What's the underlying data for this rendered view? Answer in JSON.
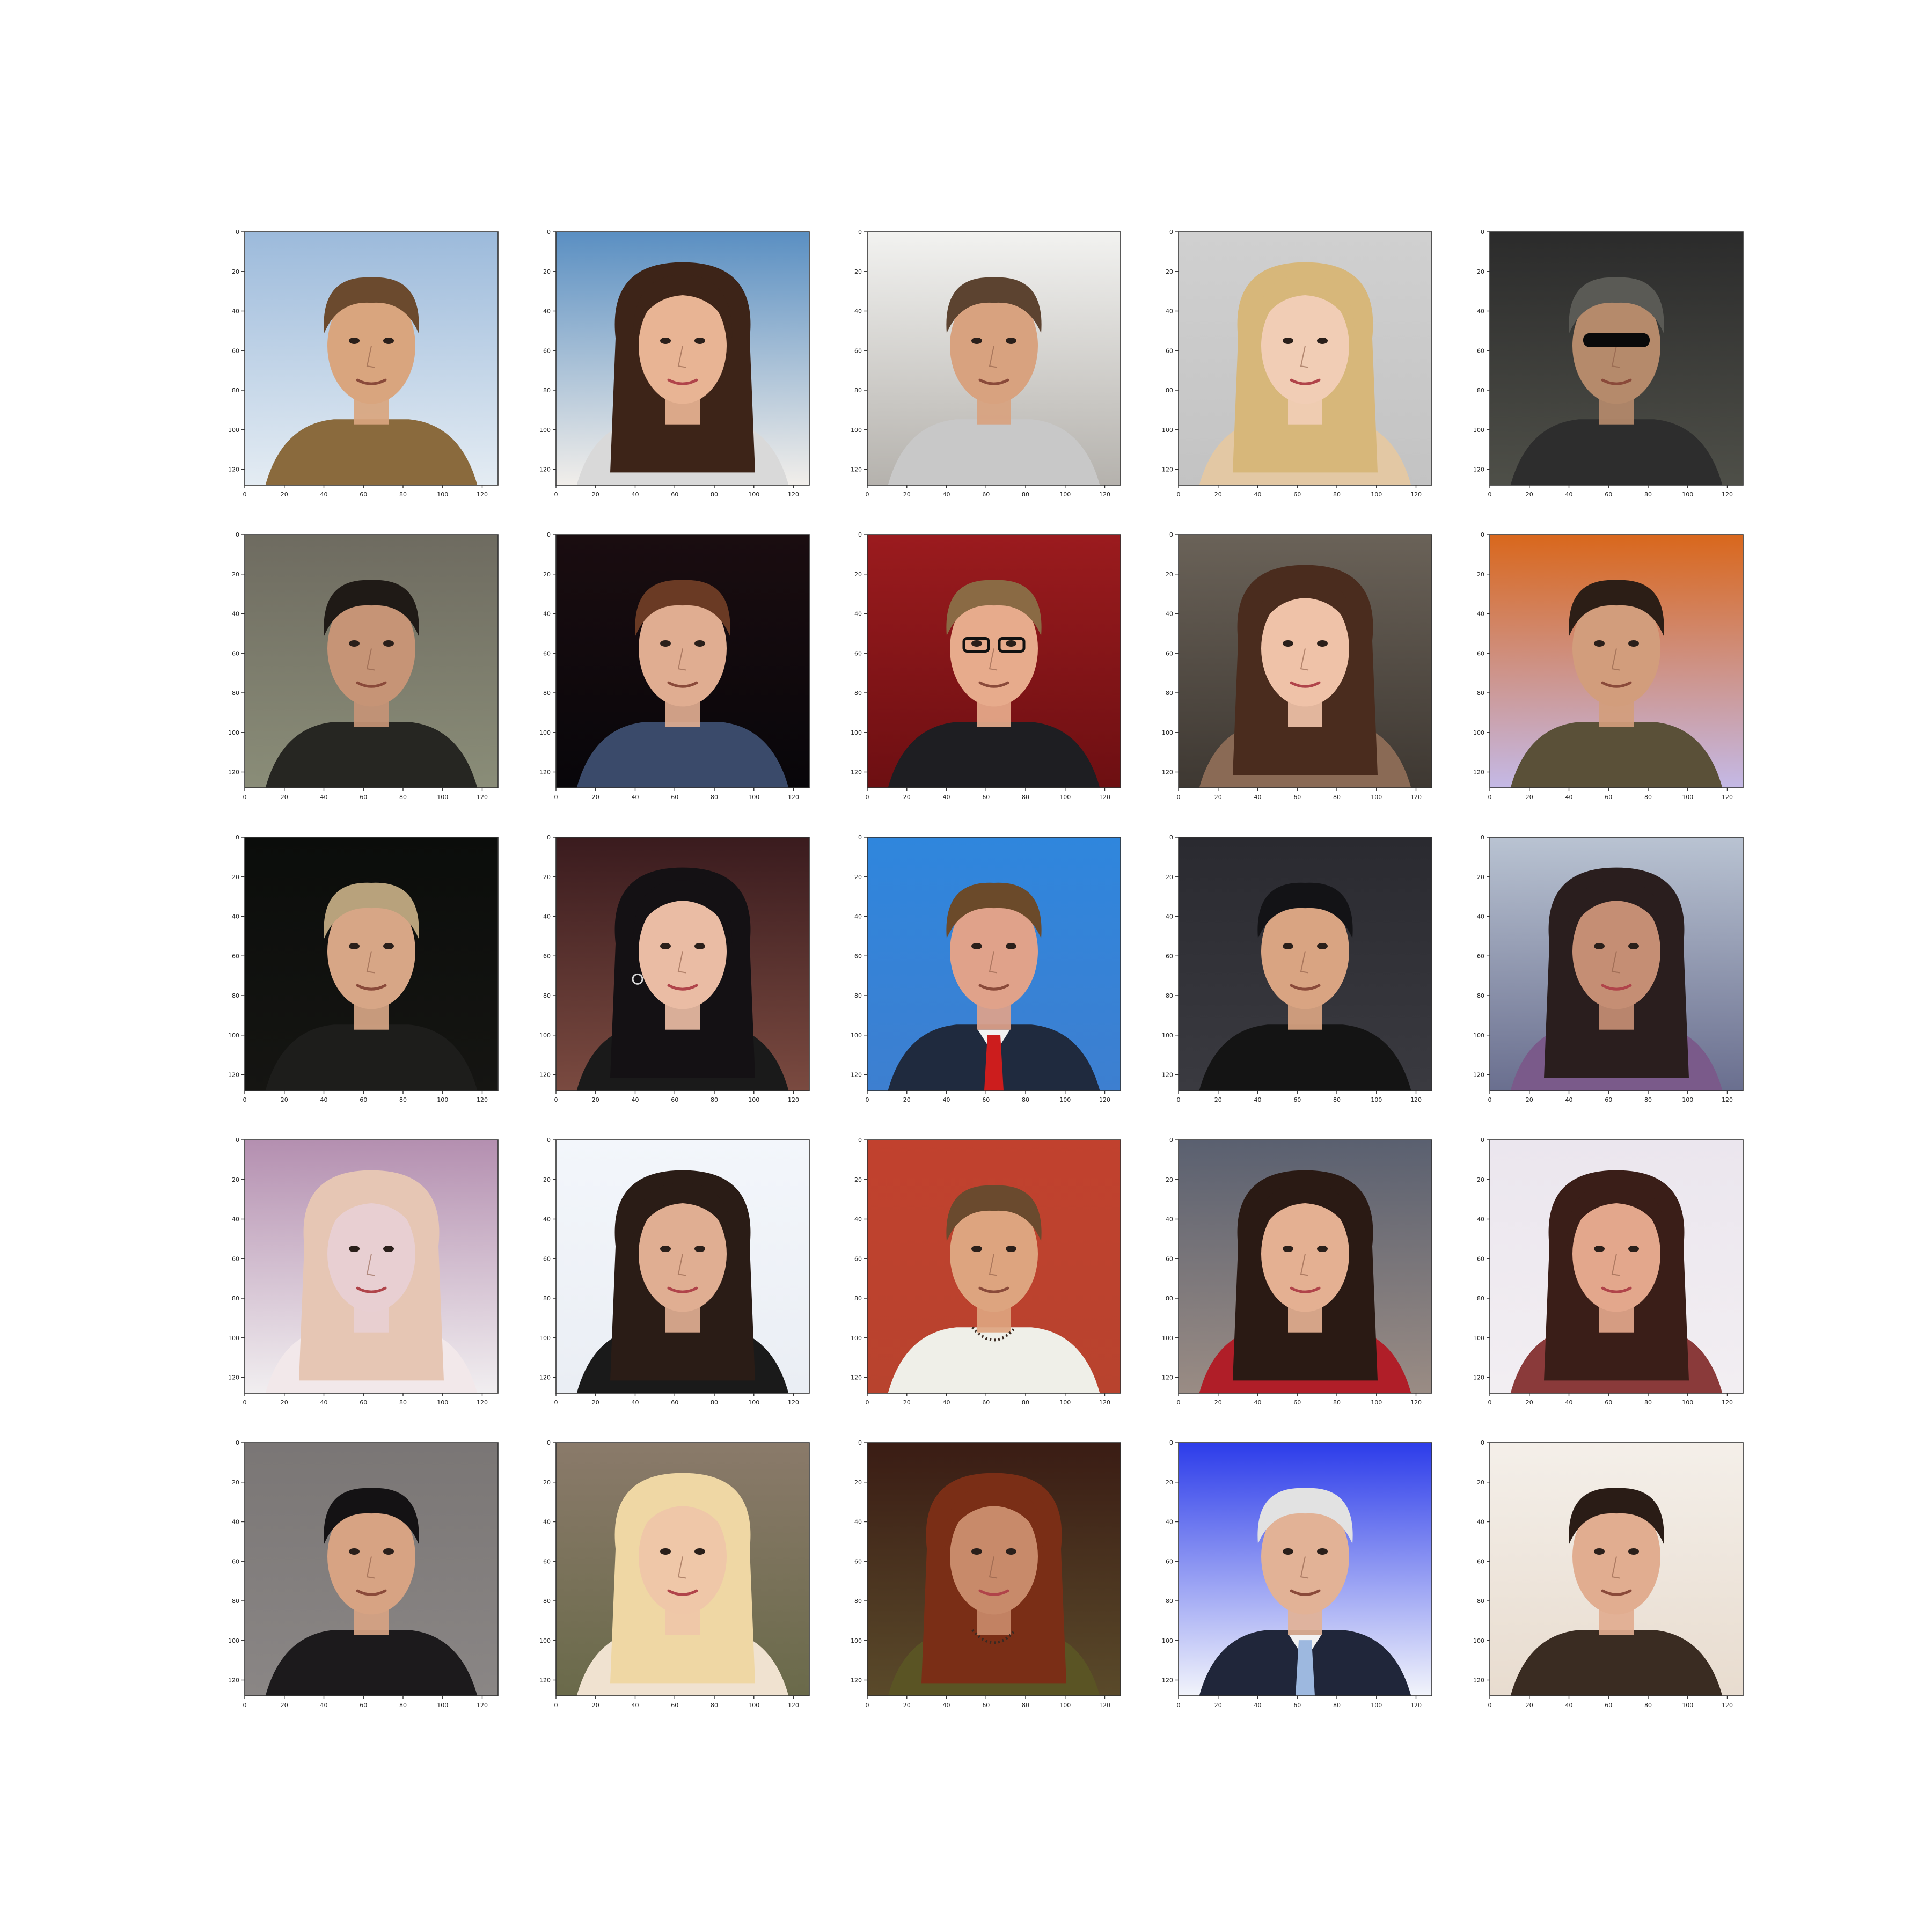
{
  "figure": {
    "rows": 5,
    "cols": 5,
    "background": "#ffffff"
  },
  "axes": {
    "x_ticks": [
      "0",
      "20",
      "40",
      "60",
      "80",
      "100",
      "120"
    ],
    "y_ticks": [
      "0",
      "20",
      "40",
      "60",
      "80",
      "100",
      "120"
    ],
    "xlim": [
      0,
      128
    ],
    "ylim": [
      128,
      0
    ]
  },
  "panels": [
    {
      "subject": "man",
      "hair": "#6b4a2e",
      "skin": "#d9a57e",
      "bg_top": "#9cbadb",
      "bg_bottom": "#e4ecf3",
      "shirt": "#8a6a3d",
      "accessory": "none"
    },
    {
      "subject": "woman",
      "hair": "#3d2418",
      "skin": "#e8b494",
      "bg_top": "#5a8fc2",
      "bg_bottom": "#f1eeea",
      "shirt": "#d9d9d9",
      "accessory": "none"
    },
    {
      "subject": "man",
      "hair": "#5c4330",
      "skin": "#d8a27f",
      "bg_top": "#f2f2f0",
      "bg_bottom": "#b5b2ad",
      "shirt": "#c8c8c8",
      "accessory": "none"
    },
    {
      "subject": "woman",
      "hair": "#d7b77a",
      "skin": "#f1cdb5",
      "bg_top": "#d0d0d0",
      "bg_bottom": "#c3c3c3",
      "shirt": "#e3c8a4",
      "accessory": "none"
    },
    {
      "subject": "man",
      "hair": "#5a5a55",
      "skin": "#b58a6b",
      "bg_top": "#2b2b2b",
      "bg_bottom": "#4e4f48",
      "shirt": "#2d2d2d",
      "accessory": "sunglasses"
    },
    {
      "subject": "man",
      "hair": "#1f1a16",
      "skin": "#c69476",
      "bg_top": "#6e6b60",
      "bg_bottom": "#8a8d78",
      "shirt": "#262622",
      "accessory": "none"
    },
    {
      "subject": "man",
      "hair": "#6a3a24",
      "skin": "#e0ad91",
      "bg_top": "#1a0d10",
      "bg_bottom": "#08060a",
      "shirt": "#3a4a6a",
      "accessory": "none"
    },
    {
      "subject": "man",
      "hair": "#8a6a44",
      "skin": "#e7ab8c",
      "bg_top": "#9b1b1e",
      "bg_bottom": "#6d0f12",
      "shirt": "#1e1e22",
      "accessory": "glasses"
    },
    {
      "subject": "woman",
      "hair": "#4a2c1e",
      "skin": "#efc2a8",
      "bg_top": "#6a6258",
      "bg_bottom": "#3e3832",
      "shirt": "#8a6a55",
      "accessory": "none"
    },
    {
      "subject": "man",
      "hair": "#2c1e16",
      "skin": "#d29d7c",
      "bg_top": "#d9671c",
      "bg_bottom": "#c4b9e6",
      "shirt": "#5a5038",
      "accessory": "none"
    },
    {
      "subject": "man",
      "hair": "#b8a27c",
      "skin": "#d7a686",
      "bg_top": "#0b0d0b",
      "bg_bottom": "#151512",
      "shirt": "#1d1d1b",
      "accessory": "none"
    },
    {
      "subject": "woman",
      "hair": "#141114",
      "skin": "#eabca4",
      "bg_top": "#3a1b1e",
      "bg_bottom": "#7a4a40",
      "shirt": "#1a1a1a",
      "accessory": "earrings"
    },
    {
      "subject": "man",
      "hair": "#6b4a2a",
      "skin": "#e0a28a",
      "bg_top": "#2f86dd",
      "bg_bottom": "#3d7fd0",
      "shirt": "#1f2a3e",
      "accessory": "red-tie"
    },
    {
      "subject": "man",
      "hair": "#131316",
      "skin": "#d9a482",
      "bg_top": "#2a2a30",
      "bg_bottom": "#3a3a40",
      "shirt": "#141414",
      "accessory": "none"
    },
    {
      "subject": "woman",
      "hair": "#2a1e1e",
      "skin": "#c58e74",
      "bg_top": "#b9c3d2",
      "bg_bottom": "#6a6f8f",
      "shirt": "#7a5a8a",
      "accessory": "none"
    },
    {
      "subject": "woman",
      "hair": "#e6c6b4",
      "skin": "#e8cfd2",
      "bg_top": "#b48fb0",
      "bg_bottom": "#f1eef0",
      "shirt": "#f2e8ea",
      "accessory": "none"
    },
    {
      "subject": "woman",
      "hair": "#2a1c16",
      "skin": "#e0ae92",
      "bg_top": "#f3f6fb",
      "bg_bottom": "#eaeef4",
      "shirt": "#1a1a1a",
      "accessory": "none"
    },
    {
      "subject": "man",
      "hair": "#6a4a2e",
      "skin": "#dda47f",
      "bg_top": "#c1412e",
      "bg_bottom": "#b8432e",
      "shirt": "#efefe8",
      "accessory": "necklace"
    },
    {
      "subject": "woman",
      "hair": "#2a1a14",
      "skin": "#e4b092",
      "bg_top": "#5a6070",
      "bg_bottom": "#9a8c84",
      "shirt": "#b01e28",
      "accessory": "none"
    },
    {
      "subject": "woman",
      "hair": "#3a1e18",
      "skin": "#e3a78c",
      "bg_top": "#ebe6ee",
      "bg_bottom": "#f2eef2",
      "shirt": "#8a3a3a",
      "accessory": "none"
    },
    {
      "subject": "man",
      "hair": "#141214",
      "skin": "#d7a383",
      "bg_top": "#7a7675",
      "bg_bottom": "#8a8685",
      "shirt": "#1c1a1c",
      "accessory": "none"
    },
    {
      "subject": "woman",
      "hair": "#efd7a4",
      "skin": "#efc7a8",
      "bg_top": "#8a7a6a",
      "bg_bottom": "#6a6a4a",
      "shirt": "#f0e2d0",
      "accessory": "none"
    },
    {
      "subject": "woman",
      "hair": "#7a2e16",
      "skin": "#c88a6a",
      "bg_top": "#3a1c14",
      "bg_bottom": "#5a4a2a",
      "shirt": "#5a5424",
      "accessory": "necklace"
    },
    {
      "subject": "man",
      "hair": "#e2e2e2",
      "skin": "#e2b296",
      "bg_top": "#2c3cea",
      "bg_bottom": "#f2f4fb",
      "shirt": "#20263a",
      "accessory": "blue-tie"
    },
    {
      "subject": "man",
      "hair": "#2a1c16",
      "skin": "#e1ad90",
      "bg_top": "#f4efe9",
      "bg_bottom": "#e8dccf",
      "shirt": "#3a2c22",
      "accessory": "none"
    }
  ]
}
